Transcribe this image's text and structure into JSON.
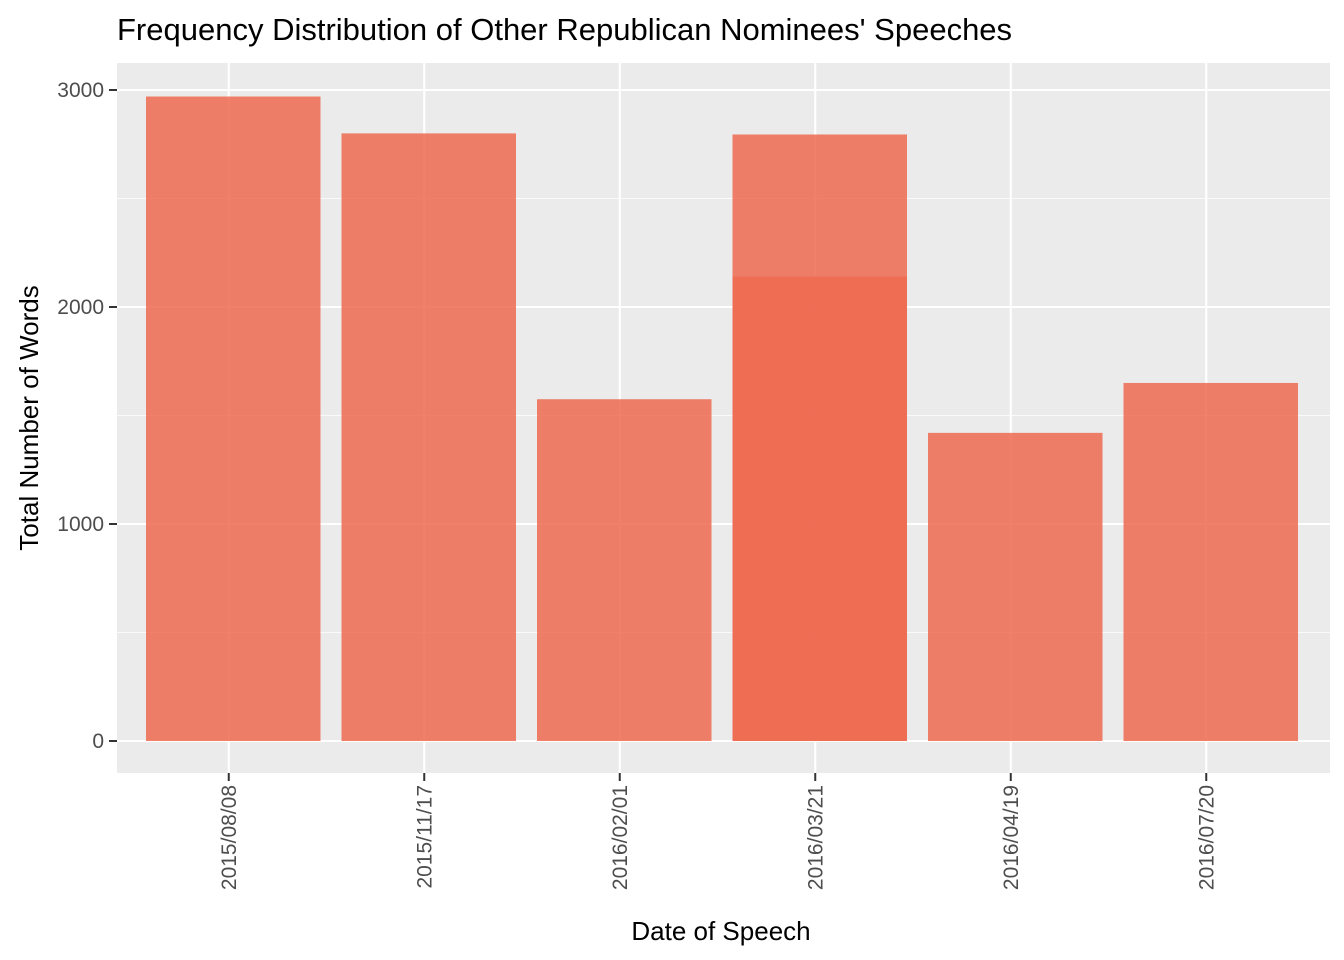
{
  "chart_data": {
    "type": "bar",
    "title": "Frequency Distribution of Other Republican Nominees' Speeches",
    "xlabel": "Date of Speech",
    "ylabel": "Total Number of Words",
    "categories": [
      "2015/08/08",
      "2015/11/17",
      "2016/02/01",
      "2016/03/21",
      "2016/04/19",
      "2016/07/20"
    ],
    "series": [
      {
        "values": [
          2970,
          2800,
          1575,
          2140,
          1420,
          1650
        ]
      },
      {
        "values": [
          0,
          0,
          0,
          2795,
          0,
          0
        ]
      }
    ],
    "ylim": [
      0,
      3000
    ],
    "y_ticks": [
      0,
      1000,
      2000,
      3000
    ],
    "y_tick_labels": [
      "0",
      "1000",
      "2000",
      "3000"
    ],
    "x_tick_label_rotation": -90,
    "grid": true,
    "legend": "none",
    "colors": {
      "bar": "#ee6a50",
      "panel_background": "#ebebeb",
      "grid": "#ffffff",
      "tick_text": "#4d4d4d",
      "text": "#000000"
    },
    "bar_opacity": 0.85
  }
}
